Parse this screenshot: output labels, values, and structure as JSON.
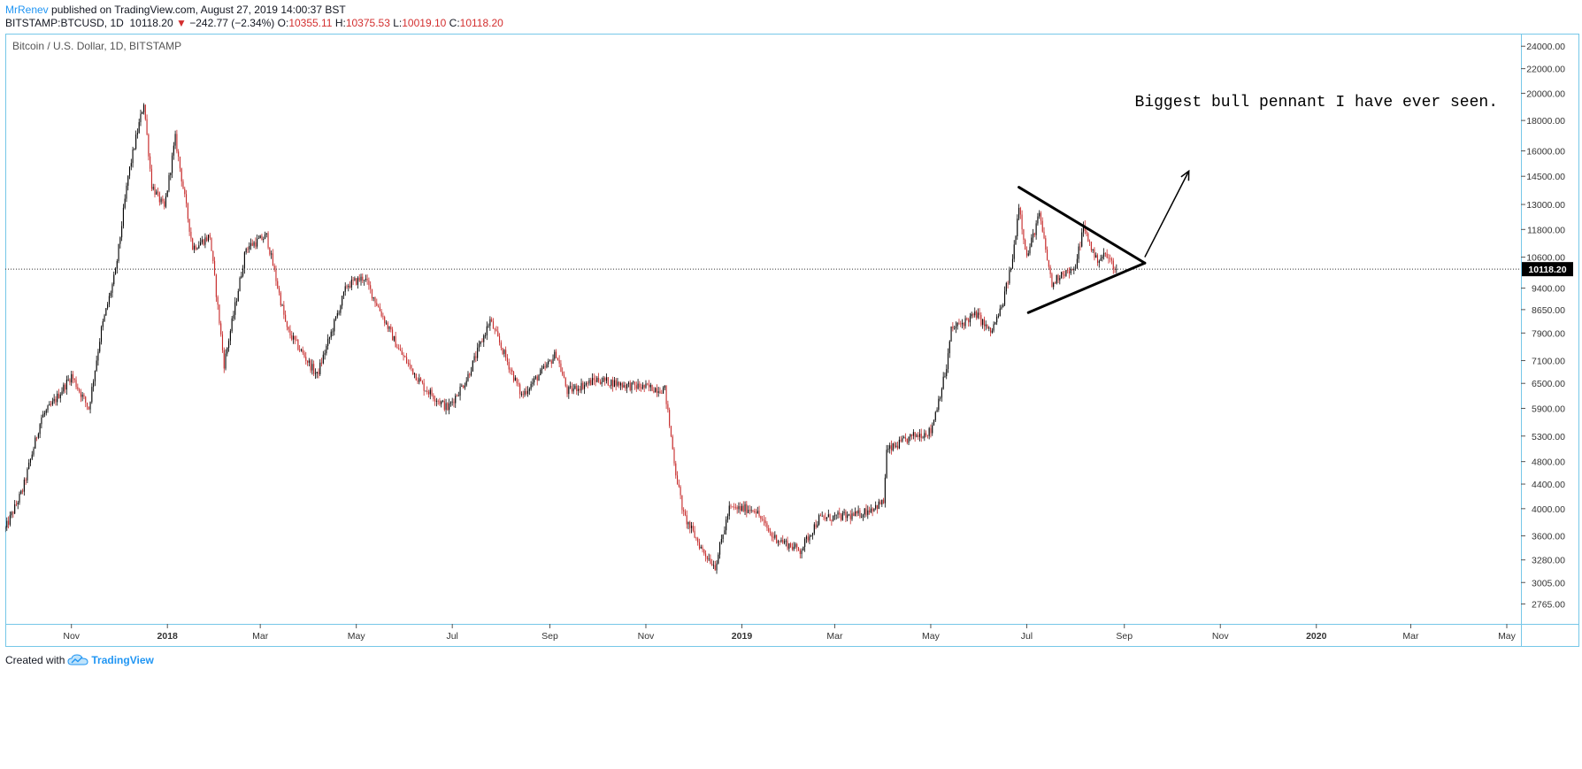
{
  "header": {
    "author": "MrRenev",
    "published_text": " published on TradingView.com, August 27, 2019 14:00:37 BST",
    "symbol": "BITSTAMP:BTCUSD, 1D",
    "last": "10118.20",
    "change_arrow": "▼",
    "change": "−242.77 (−2.34%)",
    "o_label": "O:",
    "o_value": "10355.11",
    "h_label": "H:",
    "h_value": "10375.53",
    "l_label": "L:",
    "l_value": "10019.10",
    "c_label": "C:",
    "c_value": "10118.20"
  },
  "footer": {
    "created_with": "Created with",
    "brand": "TradingView"
  },
  "colors": {
    "up": "#000000",
    "down": "#c62828",
    "frame": "#76c7e8",
    "price_line": "#333333"
  },
  "chart_data": {
    "type": "candlestick",
    "title": "Bitcoin / U.S. Dollar, 1D, BITSTAMP",
    "annotation": "Biggest bull pennant I have ever seen.",
    "current_price_label": "10118.20",
    "current_price": 10118.2,
    "y_scale": "log",
    "ylim": [
      2560,
      25200
    ],
    "y_ticks": [
      24000,
      22000,
      20000,
      18000,
      16000,
      14500,
      13000,
      11800,
      10600,
      9400,
      8650,
      7900,
      7100,
      6500,
      5900,
      5300,
      4800,
      4400,
      4000,
      3600,
      3280,
      3005,
      2765
    ],
    "y_tick_labels": [
      "24000.00",
      "22000.00",
      "20000.00",
      "18000.00",
      "16000.00",
      "14500.00",
      "13000.00",
      "11800.00",
      "10600.00",
      "9400.00",
      "8650.00",
      "7900.00",
      "7100.00",
      "6500.00",
      "5900.00",
      "5300.00",
      "4800.00",
      "4400.00",
      "4000.00",
      "3600.00",
      "3280.00",
      "3005.00",
      "2765.00"
    ],
    "x_range": [
      "2017-09-20",
      "2020-05-10"
    ],
    "x_ticks": [
      {
        "date": "2017-11-01",
        "label": "Nov",
        "bold": false
      },
      {
        "date": "2018-01-01",
        "label": "2018",
        "bold": true
      },
      {
        "date": "2018-03-01",
        "label": "Mar",
        "bold": false
      },
      {
        "date": "2018-05-01",
        "label": "May",
        "bold": false
      },
      {
        "date": "2018-07-01",
        "label": "Jul",
        "bold": false
      },
      {
        "date": "2018-09-01",
        "label": "Sep",
        "bold": false
      },
      {
        "date": "2018-11-01",
        "label": "Nov",
        "bold": false
      },
      {
        "date": "2019-01-01",
        "label": "2019",
        "bold": true
      },
      {
        "date": "2019-03-01",
        "label": "Mar",
        "bold": false
      },
      {
        "date": "2019-05-01",
        "label": "May",
        "bold": false
      },
      {
        "date": "2019-07-01",
        "label": "Jul",
        "bold": false
      },
      {
        "date": "2019-09-01",
        "label": "Sep",
        "bold": false
      },
      {
        "date": "2019-11-01",
        "label": "Nov",
        "bold": false
      },
      {
        "date": "2020-01-01",
        "label": "2020",
        "bold": true
      },
      {
        "date": "2020-03-01",
        "label": "Mar",
        "bold": false
      },
      {
        "date": "2020-05-01",
        "label": "May",
        "bold": false
      }
    ],
    "candle_range": [
      "2017-09-20",
      "2019-08-27"
    ],
    "price_path": [
      [
        "2017-09-20",
        3700
      ],
      [
        "2017-10-01",
        4300
      ],
      [
        "2017-10-13",
        5700
      ],
      [
        "2017-10-20",
        6000
      ],
      [
        "2017-11-01",
        6700
      ],
      [
        "2017-11-12",
        5900
      ],
      [
        "2017-11-20",
        8000
      ],
      [
        "2017-11-29",
        10000
      ],
      [
        "2017-12-07",
        14500
      ],
      [
        "2017-12-12",
        16800
      ],
      [
        "2017-12-17",
        19300
      ],
      [
        "2017-12-22",
        14000
      ],
      [
        "2017-12-30",
        12800
      ],
      [
        "2018-01-06",
        16800
      ],
      [
        "2018-01-17",
        11000
      ],
      [
        "2018-01-28",
        11500
      ],
      [
        "2018-02-06",
        7000
      ],
      [
        "2018-02-20",
        11000
      ],
      [
        "2018-03-05",
        11500
      ],
      [
        "2018-03-18",
        8000
      ],
      [
        "2018-04-06",
        6700
      ],
      [
        "2018-04-25",
        9500
      ],
      [
        "2018-05-06",
        9800
      ],
      [
        "2018-05-28",
        7400
      ],
      [
        "2018-06-13",
        6400
      ],
      [
        "2018-06-28",
        5900
      ],
      [
        "2018-07-10",
        6600
      ],
      [
        "2018-07-25",
        8300
      ],
      [
        "2018-08-14",
        6200
      ],
      [
        "2018-08-31",
        7000
      ],
      [
        "2018-09-05",
        7300
      ],
      [
        "2018-09-12",
        6300
      ],
      [
        "2018-10-01",
        6600
      ],
      [
        "2018-10-20",
        6450
      ],
      [
        "2018-11-13",
        6350
      ],
      [
        "2018-11-20",
        4600
      ],
      [
        "2018-11-25",
        3900
      ],
      [
        "2018-12-07",
        3400
      ],
      [
        "2018-12-15",
        3200
      ],
      [
        "2018-12-24",
        4000
      ],
      [
        "2019-01-09",
        4000
      ],
      [
        "2019-01-20",
        3600
      ],
      [
        "2019-02-07",
        3400
      ],
      [
        "2019-02-19",
        3850
      ],
      [
        "2019-03-15",
        3900
      ],
      [
        "2019-04-01",
        4100
      ],
      [
        "2019-04-03",
        5000
      ],
      [
        "2019-04-20",
        5300
      ],
      [
        "2019-05-01",
        5400
      ],
      [
        "2019-05-11",
        6900
      ],
      [
        "2019-05-14",
        8000
      ],
      [
        "2019-05-30",
        8500
      ],
      [
        "2019-06-08",
        7900
      ],
      [
        "2019-06-15",
        8700
      ],
      [
        "2019-06-22",
        10500
      ],
      [
        "2019-06-26",
        13000
      ],
      [
        "2019-07-01",
        10600
      ],
      [
        "2019-07-09",
        12500
      ],
      [
        "2019-07-17",
        9500
      ],
      [
        "2019-07-23",
        10000
      ],
      [
        "2019-07-31",
        10000
      ],
      [
        "2019-08-06",
        11900
      ],
      [
        "2019-08-14",
        10500
      ],
      [
        "2019-08-20",
        10700
      ],
      [
        "2019-08-27",
        10118
      ]
    ],
    "pennant": {
      "upper_line": [
        [
          "2019-06-26",
          13900
        ],
        [
          "2019-09-14",
          10360
        ]
      ],
      "lower_line": [
        [
          "2019-07-02",
          8550
        ],
        [
          "2019-09-14",
          10360
        ]
      ],
      "breakout_arrow": [
        [
          "2019-09-14",
          10600
        ],
        [
          "2019-10-12",
          14800
        ]
      ]
    }
  }
}
